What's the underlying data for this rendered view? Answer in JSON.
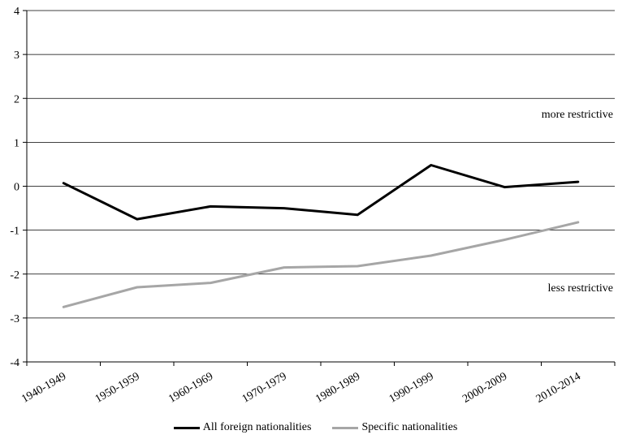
{
  "chart_data": {
    "type": "line",
    "categories": [
      "1940-1949",
      "1950-1959",
      "1960-1969",
      "1970-1979",
      "1980-1989",
      "1990-1999",
      "2000-2009",
      "2010-2014"
    ],
    "series": [
      {
        "name": "All foreign nationalities",
        "color": "#000000",
        "values": [
          0.07,
          -0.75,
          -0.46,
          -0.5,
          -0.65,
          0.48,
          -0.02,
          0.1
        ]
      },
      {
        "name": "Specific nationalities",
        "color": "#a6a6a6",
        "values": [
          -2.75,
          -2.3,
          -2.2,
          -1.85,
          -1.82,
          -1.58,
          -1.22,
          -0.82
        ]
      }
    ],
    "ylim": [
      -4,
      4
    ],
    "yticks": [
      "4",
      "3",
      "2",
      "1",
      "0",
      "-1",
      "-2",
      "-3",
      "-4"
    ],
    "grid": true,
    "legend_position": "bottom",
    "annotations": [
      {
        "text": "more restrictive",
        "y": 1.65
      },
      {
        "text": "less restrictive",
        "y": -2.3
      }
    ]
  }
}
